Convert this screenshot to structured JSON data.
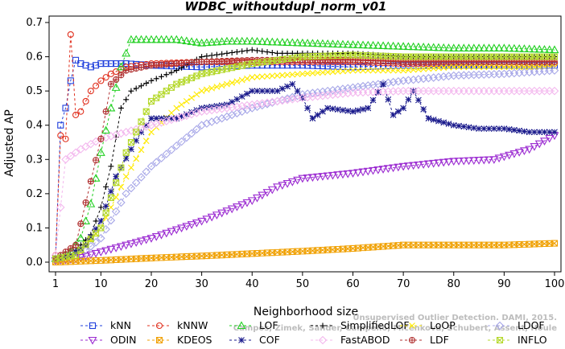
{
  "chart_data": {
    "type": "line",
    "title": "WDBC_withoutdupl_norm_v01",
    "xlabel": "Neighborhood size",
    "ylabel": "Adjusted AP",
    "xlim": [
      1,
      100
    ],
    "ylim": [
      0,
      0.7
    ],
    "x_ticks": [
      1,
      10,
      20,
      30,
      40,
      50,
      60,
      70,
      80,
      90,
      100
    ],
    "y_ticks": [
      0.0,
      0.1,
      0.2,
      0.3,
      0.4,
      0.5,
      0.6,
      0.7
    ],
    "x_tick_labels": [
      "1",
      "10",
      "20",
      "30",
      "40",
      "50",
      "60",
      "70",
      "80",
      "90",
      "100"
    ],
    "y_tick_labels": [
      "0.0",
      "0.1",
      "0.2",
      "0.3",
      "0.4",
      "0.5",
      "0.6",
      "0.7"
    ],
    "grid": false,
    "legend_position": "bottom",
    "watermark": "Campos, Zimek, Sander, Campello, Micenkova, Schubert, Assent, Houle Unsupervised Outlier Detection. DAMI, 2015.",
    "series": [
      {
        "name": "kNN",
        "color": "#1f3fdc",
        "marker": "square",
        "dash": "3,3",
        "points": [
          [
            1,
            0.01
          ],
          [
            2,
            0.4
          ],
          [
            3,
            0.45
          ],
          [
            4,
            0.53
          ],
          [
            5,
            0.59
          ],
          [
            6,
            0.58
          ],
          [
            8,
            0.57
          ],
          [
            10,
            0.58
          ],
          [
            15,
            0.58
          ],
          [
            20,
            0.575
          ],
          [
            30,
            0.57
          ],
          [
            40,
            0.575
          ],
          [
            50,
            0.575
          ],
          [
            60,
            0.57
          ],
          [
            70,
            0.575
          ],
          [
            80,
            0.575
          ],
          [
            90,
            0.575
          ],
          [
            100,
            0.575
          ]
        ]
      },
      {
        "name": "kNNW",
        "color": "#e0301e",
        "marker": "circle",
        "dash": "3,3",
        "points": [
          [
            1,
            0.02
          ],
          [
            2,
            0.37
          ],
          [
            3,
            0.36
          ],
          [
            4,
            0.665
          ],
          [
            5,
            0.43
          ],
          [
            6,
            0.44
          ],
          [
            8,
            0.5
          ],
          [
            10,
            0.53
          ],
          [
            12,
            0.55
          ],
          [
            15,
            0.57
          ],
          [
            20,
            0.58
          ],
          [
            30,
            0.585
          ],
          [
            40,
            0.585
          ],
          [
            50,
            0.585
          ],
          [
            60,
            0.585
          ],
          [
            70,
            0.58
          ],
          [
            80,
            0.58
          ],
          [
            90,
            0.58
          ],
          [
            100,
            0.58
          ]
        ]
      },
      {
        "name": "LOF",
        "color": "#22d022",
        "marker": "triangle-up",
        "dash": "3,3",
        "points": [
          [
            1,
            0.01
          ],
          [
            2,
            0.015
          ],
          [
            4,
            0.03
          ],
          [
            6,
            0.07
          ],
          [
            8,
            0.17
          ],
          [
            10,
            0.32
          ],
          [
            12,
            0.45
          ],
          [
            14,
            0.57
          ],
          [
            16,
            0.65
          ],
          [
            20,
            0.65
          ],
          [
            25,
            0.65
          ],
          [
            30,
            0.64
          ],
          [
            35,
            0.645
          ],
          [
            40,
            0.645
          ],
          [
            50,
            0.64
          ],
          [
            60,
            0.635
          ],
          [
            70,
            0.63
          ],
          [
            80,
            0.625
          ],
          [
            90,
            0.625
          ],
          [
            100,
            0.62
          ]
        ]
      },
      {
        "name": "SimplifiedLOF",
        "color": "#000000",
        "marker": "plus",
        "dash": "3,3",
        "points": [
          [
            1,
            0.01
          ],
          [
            4,
            0.02
          ],
          [
            8,
            0.08
          ],
          [
            10,
            0.16
          ],
          [
            12,
            0.28
          ],
          [
            14,
            0.45
          ],
          [
            16,
            0.5
          ],
          [
            20,
            0.53
          ],
          [
            25,
            0.56
          ],
          [
            30,
            0.6
          ],
          [
            35,
            0.61
          ],
          [
            40,
            0.62
          ],
          [
            45,
            0.61
          ],
          [
            50,
            0.61
          ],
          [
            60,
            0.61
          ],
          [
            70,
            0.6
          ],
          [
            80,
            0.6
          ],
          [
            90,
            0.6
          ],
          [
            100,
            0.6
          ]
        ]
      },
      {
        "name": "LoOP",
        "color": "#ffea00",
        "marker": "cross",
        "dash": "3,3",
        "points": [
          [
            1,
            0.005
          ],
          [
            5,
            0.01
          ],
          [
            10,
            0.1
          ],
          [
            15,
            0.25
          ],
          [
            20,
            0.38
          ],
          [
            25,
            0.45
          ],
          [
            30,
            0.5
          ],
          [
            40,
            0.54
          ],
          [
            50,
            0.55
          ],
          [
            60,
            0.56
          ],
          [
            70,
            0.56
          ],
          [
            80,
            0.57
          ],
          [
            90,
            0.57
          ],
          [
            100,
            0.57
          ]
        ]
      },
      {
        "name": "LDOF",
        "color": "#a8a8e8",
        "marker": "diamond",
        "dash": "3,3",
        "points": [
          [
            1,
            0.005
          ],
          [
            5,
            0.01
          ],
          [
            10,
            0.07
          ],
          [
            15,
            0.2
          ],
          [
            20,
            0.28
          ],
          [
            25,
            0.34
          ],
          [
            30,
            0.4
          ],
          [
            40,
            0.45
          ],
          [
            50,
            0.49
          ],
          [
            60,
            0.51
          ],
          [
            70,
            0.53
          ],
          [
            80,
            0.545
          ],
          [
            90,
            0.55
          ],
          [
            100,
            0.56
          ]
        ]
      },
      {
        "name": "ODIN",
        "color": "#9b2bd1",
        "marker": "triangle-down",
        "dash": "3,3",
        "points": [
          [
            1,
            0.005
          ],
          [
            5,
            0.01
          ],
          [
            10,
            0.03
          ],
          [
            20,
            0.07
          ],
          [
            30,
            0.12
          ],
          [
            40,
            0.18
          ],
          [
            45,
            0.22
          ],
          [
            50,
            0.245
          ],
          [
            60,
            0.26
          ],
          [
            70,
            0.28
          ],
          [
            80,
            0.295
          ],
          [
            88,
            0.3
          ],
          [
            95,
            0.33
          ],
          [
            100,
            0.37
          ]
        ]
      },
      {
        "name": "KDEOS",
        "color": "#f0a000",
        "marker": "x-square",
        "dash": "3,3",
        "points": [
          [
            1,
            0.0
          ],
          [
            10,
            0.005
          ],
          [
            20,
            0.012
          ],
          [
            30,
            0.018
          ],
          [
            40,
            0.025
          ],
          [
            50,
            0.032
          ],
          [
            60,
            0.04
          ],
          [
            70,
            0.05
          ],
          [
            80,
            0.05
          ],
          [
            90,
            0.05
          ],
          [
            100,
            0.055
          ]
        ]
      },
      {
        "name": "COF",
        "color": "#1a1a8c",
        "marker": "asterisk",
        "dash": "3,3",
        "points": [
          [
            1,
            0.01
          ],
          [
            4,
            0.02
          ],
          [
            7,
            0.05
          ],
          [
            10,
            0.12
          ],
          [
            13,
            0.25
          ],
          [
            16,
            0.33
          ],
          [
            18,
            0.38
          ],
          [
            20,
            0.42
          ],
          [
            25,
            0.42
          ],
          [
            30,
            0.45
          ],
          [
            35,
            0.46
          ],
          [
            40,
            0.5
          ],
          [
            45,
            0.5
          ],
          [
            48,
            0.52
          ],
          [
            50,
            0.48
          ],
          [
            52,
            0.42
          ],
          [
            55,
            0.45
          ],
          [
            60,
            0.44
          ],
          [
            63,
            0.45
          ],
          [
            66,
            0.52
          ],
          [
            68,
            0.43
          ],
          [
            70,
            0.45
          ],
          [
            72,
            0.5
          ],
          [
            75,
            0.42
          ],
          [
            80,
            0.4
          ],
          [
            85,
            0.39
          ],
          [
            90,
            0.39
          ],
          [
            95,
            0.38
          ],
          [
            100,
            0.38
          ]
        ]
      },
      {
        "name": "FastABOD",
        "color": "#f3b8ee",
        "marker": "diamond",
        "dash": "3,3",
        "points": [
          [
            1,
            0.02
          ],
          [
            3,
            0.3
          ],
          [
            6,
            0.33
          ],
          [
            10,
            0.36
          ],
          [
            15,
            0.38
          ],
          [
            20,
            0.4
          ],
          [
            25,
            0.42
          ],
          [
            30,
            0.44
          ],
          [
            40,
            0.46
          ],
          [
            50,
            0.48
          ],
          [
            60,
            0.495
          ],
          [
            70,
            0.5
          ],
          [
            80,
            0.5
          ],
          [
            90,
            0.5
          ],
          [
            100,
            0.5
          ]
        ]
      },
      {
        "name": "LDF",
        "color": "#b03030",
        "marker": "circle-plus",
        "dash": "3,3",
        "points": [
          [
            1,
            0.01
          ],
          [
            5,
            0.05
          ],
          [
            10,
            0.36
          ],
          [
            12,
            0.52
          ],
          [
            15,
            0.56
          ],
          [
            20,
            0.575
          ],
          [
            30,
            0.585
          ],
          [
            40,
            0.59
          ],
          [
            50,
            0.59
          ],
          [
            60,
            0.59
          ],
          [
            70,
            0.585
          ],
          [
            80,
            0.585
          ],
          [
            90,
            0.585
          ],
          [
            100,
            0.585
          ]
        ]
      },
      {
        "name": "INFLO",
        "color": "#b4d82a",
        "marker": "x-square",
        "dash": "3,3",
        "points": [
          [
            1,
            0.01
          ],
          [
            5,
            0.02
          ],
          [
            10,
            0.1
          ],
          [
            15,
            0.32
          ],
          [
            20,
            0.47
          ],
          [
            25,
            0.52
          ],
          [
            30,
            0.55
          ],
          [
            40,
            0.58
          ],
          [
            50,
            0.6
          ],
          [
            60,
            0.605
          ],
          [
            70,
            0.6
          ],
          [
            80,
            0.6
          ],
          [
            90,
            0.6
          ],
          [
            100,
            0.6
          ]
        ]
      }
    ]
  }
}
